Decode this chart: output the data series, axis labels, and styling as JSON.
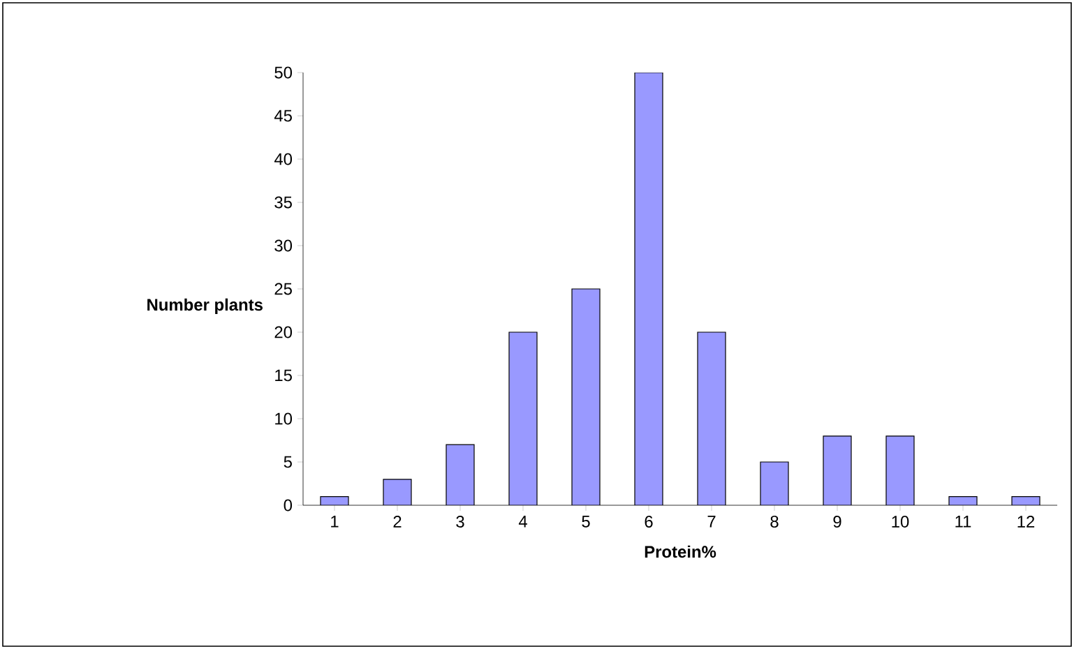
{
  "chart_data": {
    "type": "bar",
    "xlabel": "Protein%",
    "ylabel": "Number plants",
    "categories": [
      "1",
      "2",
      "3",
      "4",
      "5",
      "6",
      "7",
      "8",
      "9",
      "10",
      "11",
      "12"
    ],
    "values": [
      1,
      3,
      7,
      20,
      25,
      50,
      20,
      5,
      8,
      8,
      1,
      1
    ],
    "color": "#9999ff",
    "ylim": [
      0,
      50
    ],
    "yticks": [
      0,
      5,
      10,
      15,
      20,
      25,
      30,
      35,
      40,
      45,
      50
    ],
    "grid": false
  }
}
